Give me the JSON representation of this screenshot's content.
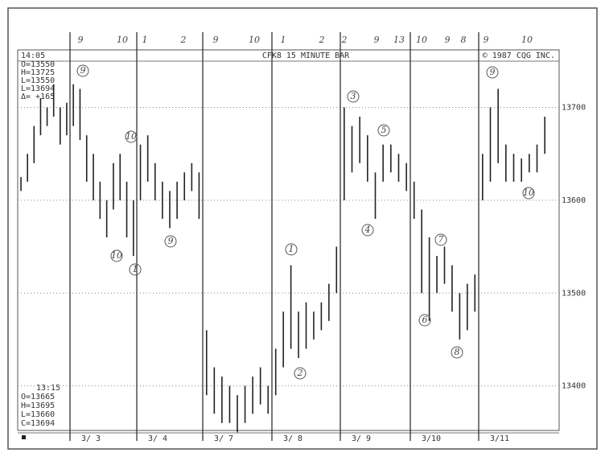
{
  "chart_data": {
    "type": "hilo",
    "title": "CFK8 15 MINUTE BAR",
    "copyright": "© 1987 CQG INC.",
    "time": "14:05",
    "summary": [
      "O=13550",
      "H=13725",
      "L=13550",
      "L=13694",
      "Δ= +165"
    ],
    "last_time": "13:15",
    "last_summary": [
      "O=13665",
      "H=13695",
      "L=13660",
      "C=13694"
    ],
    "color": "#222222",
    "grid": true,
    "ylim": [
      13352,
      13762
    ],
    "yticks": [
      13400,
      13500,
      13600,
      13700
    ],
    "categories": [
      null,
      "3/ 3",
      "3/ 4",
      "3/ 7",
      "3/ 8",
      "3/ 9",
      "3/10",
      "3/11"
    ],
    "days": [
      {
        "high": [
          13625,
          13650,
          13680,
          13710,
          13700,
          13725,
          13700,
          13705
        ],
        "low": [
          13610,
          13620,
          13640,
          13670,
          13680,
          13690,
          13660,
          13670
        ]
      },
      {
        "high": [
          13725,
          13720,
          13670,
          13650,
          13620,
          13600,
          13640,
          13650,
          13620,
          13600
        ],
        "low": [
          13680,
          13665,
          13620,
          13600,
          13580,
          13560,
          13590,
          13600,
          13560,
          13540
        ]
      },
      {
        "high": [
          13660,
          13670,
          13640,
          13620,
          13610,
          13620,
          13630,
          13640,
          13630
        ],
        "low": [
          13600,
          13620,
          13600,
          13580,
          13570,
          13580,
          13600,
          13610,
          13580
        ]
      },
      {
        "high": [
          13460,
          13420,
          13410,
          13400,
          13390,
          13400,
          13410,
          13420,
          13400
        ],
        "low": [
          13390,
          13370,
          13360,
          13360,
          13350,
          13360,
          13370,
          13380,
          13370
        ]
      },
      {
        "high": [
          13440,
          13480,
          13530,
          13480,
          13490,
          13480,
          13490,
          13510,
          13550
        ],
        "low": [
          13390,
          13420,
          13440,
          13430,
          13440,
          13450,
          13460,
          13470,
          13500
        ]
      },
      {
        "high": [
          13700,
          13680,
          13690,
          13670,
          13630,
          13660,
          13660,
          13650,
          13640
        ],
        "low": [
          13600,
          13630,
          13640,
          13620,
          13580,
          13620,
          13630,
          13620,
          13610
        ]
      },
      {
        "high": [
          13620,
          13590,
          13560,
          13540,
          13550,
          13530,
          13500,
          13510,
          13520
        ],
        "low": [
          13580,
          13500,
          13470,
          13500,
          13510,
          13480,
          13450,
          13460,
          13480
        ]
      },
      {
        "high": [
          13650,
          13700,
          13720,
          13660,
          13650,
          13645,
          13650,
          13660,
          13690
        ],
        "low": [
          13600,
          13620,
          13640,
          13620,
          13620,
          13620,
          13630,
          13630,
          13650
        ]
      }
    ],
    "top_notes": [
      "9",
      "10",
      "1",
      "2",
      "9",
      "10",
      "1",
      "2",
      "2",
      "9",
      "13",
      "10",
      "9",
      "8",
      "9",
      "10"
    ],
    "notes": [
      "9",
      "10",
      "10",
      "1",
      "9",
      "3",
      "5",
      "4",
      "1",
      "2",
      "7",
      "6",
      "8",
      "9",
      "10"
    ]
  }
}
